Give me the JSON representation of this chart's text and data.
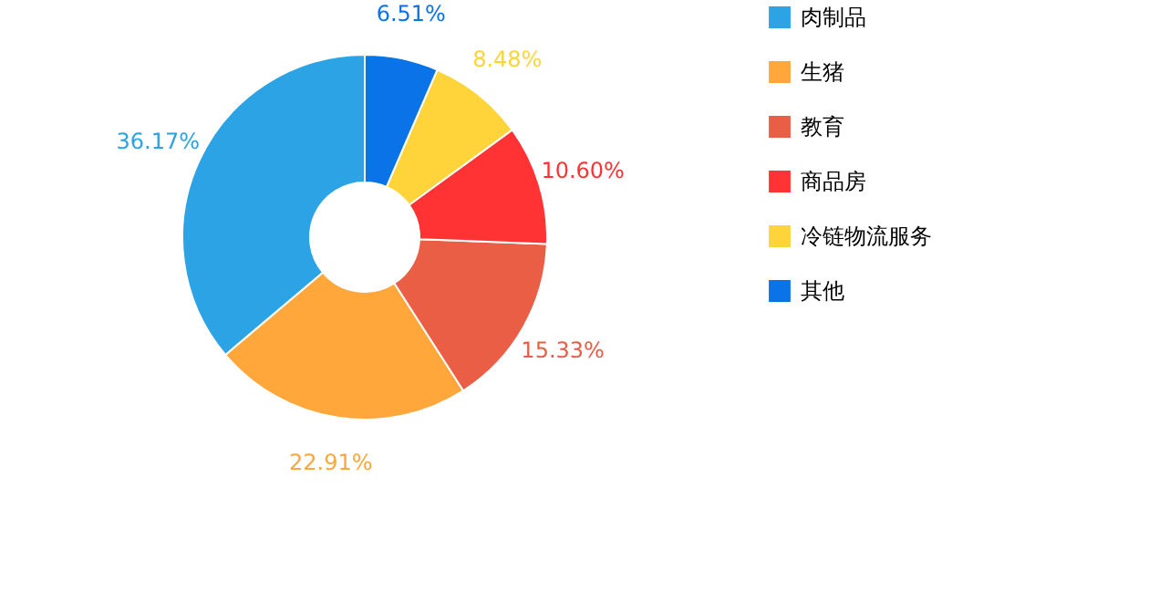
{
  "chart_data": {
    "type": "donut",
    "categories": [
      "肉制品",
      "生猪",
      "教育",
      "商品房",
      "冷链物流服务",
      "其他"
    ],
    "values": [
      36.17,
      22.91,
      15.33,
      10.6,
      8.48,
      6.51
    ],
    "value_labels": [
      "36.17%",
      "22.91%",
      "15.33%",
      "10.60%",
      "8.48%",
      "6.51%"
    ],
    "colors": [
      "#2ba3e4",
      "#ffa73a",
      "#e95e45",
      "#ff3333",
      "#ffd43b",
      "#0b73e8"
    ],
    "legend": "top right"
  }
}
